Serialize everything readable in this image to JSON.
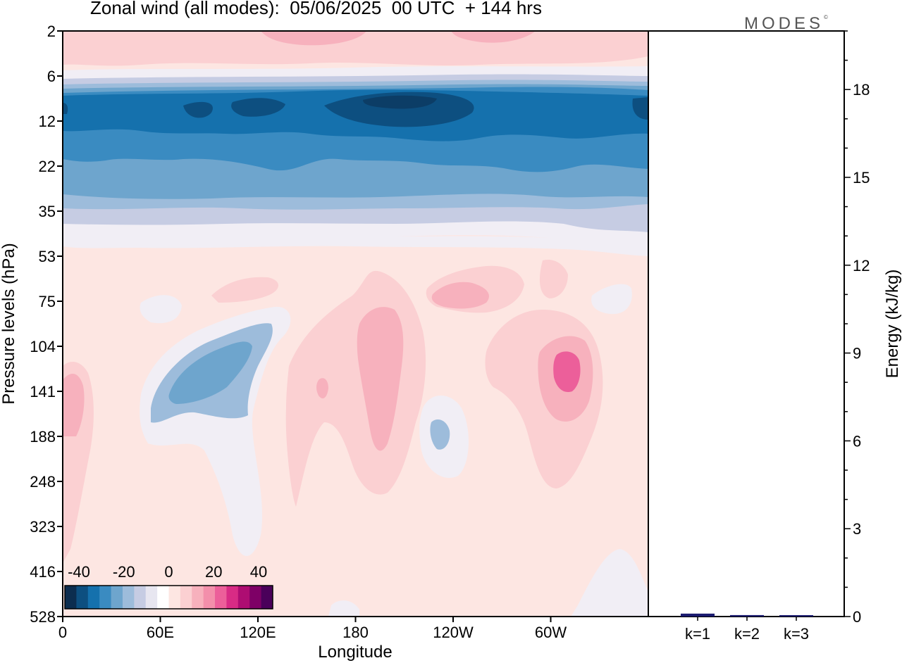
{
  "header": {
    "title": "Zonal wind (all modes):  05/06/2025  00 UTC  + 144 hrs",
    "logo": "MODES",
    "logo_mark": "©"
  },
  "chart_data": [
    {
      "type": "heatmap",
      "xlabel": "Longitude",
      "ylabel": "Pressure levels (hPa)",
      "x_ticks": [
        "0",
        "60E",
        "120E",
        "180",
        "120W",
        "60W"
      ],
      "y_ticks": [
        "2",
        "6",
        "12",
        "22",
        "35",
        "53",
        "75",
        "104",
        "141",
        "188",
        "248",
        "323",
        "416",
        "528"
      ],
      "colorbar": {
        "labels": [
          "-40",
          "-20",
          "0",
          "20",
          "40"
        ],
        "colors": [
          "#0c2d4f",
          "#0d4f80",
          "#1571ad",
          "#3a8bc1",
          "#6ea5cd",
          "#9dbcdb",
          "#c6cce3",
          "#e7e6f0",
          "#ffffff",
          "#fde6e2",
          "#fbd0d2",
          "#f7b1bd",
          "#f38fab",
          "#ec5f9a",
          "#d82b85",
          "#ae0d72",
          "#7e0066",
          "#4a005a"
        ]
      },
      "fields": [
        {
          "color": "#fde6e2",
          "desc": "background"
        },
        {
          "color": "#f1eef5",
          "desc": "weak negative"
        },
        {
          "color": "#fbd0d2",
          "desc": "weak positive"
        },
        {
          "color": "#c6cce3",
          "desc": "negative"
        },
        {
          "color": "#9dbcdb",
          "desc": "negative"
        },
        {
          "color": "#6ea5cd",
          "desc": "negative"
        },
        {
          "color": "#3a8bc1",
          "desc": "strong negative"
        },
        {
          "color": "#1571ad",
          "desc": "strong negative"
        },
        {
          "color": "#0d4f80",
          "desc": "strongest negative"
        },
        {
          "color": "#f7b1bd",
          "desc": "positive"
        },
        {
          "color": "#f38fab",
          "desc": "strong positive"
        },
        {
          "color": "#ec5f9a",
          "desc": "strongest positive"
        }
      ]
    },
    {
      "type": "bar",
      "ylabel": "Energy (kJ/kg)",
      "categories": [
        "k=1",
        "k=2",
        "k=3"
      ],
      "values": [
        0.1,
        0.05,
        0.03
      ],
      "ylim": [
        0,
        20
      ],
      "y_ticks": [
        "0",
        "3",
        "6",
        "9",
        "12",
        "15",
        "18"
      ],
      "bar_color": "#1a1a6e"
    }
  ]
}
